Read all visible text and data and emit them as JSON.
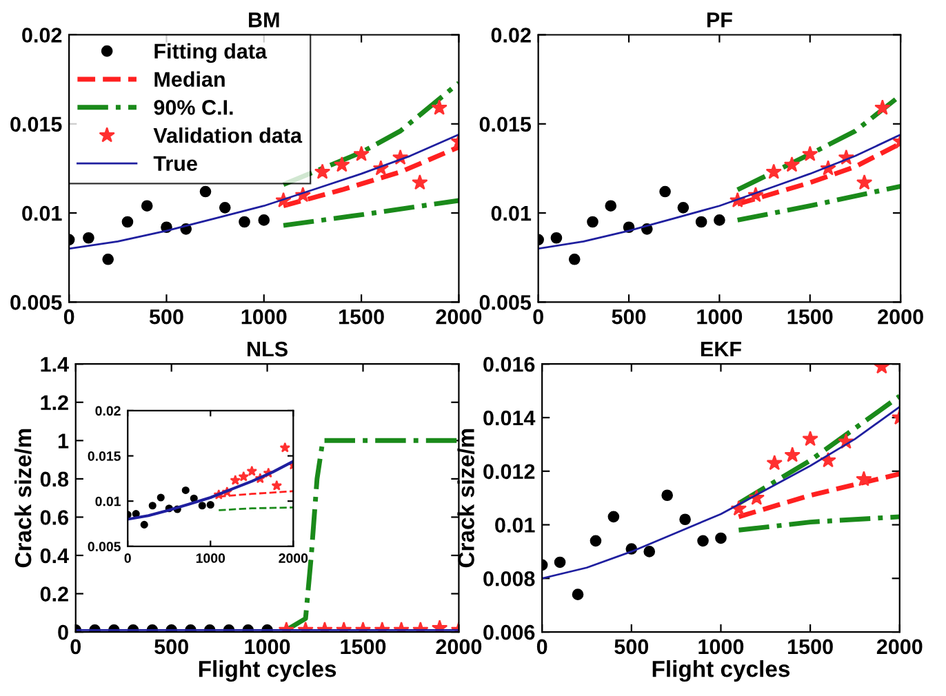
{
  "chart_data": [
    {
      "type": "line",
      "title": "BM",
      "xlim": [
        0,
        2000
      ],
      "xticks": [
        0,
        500,
        1000,
        1500,
        2000
      ],
      "ylim": [
        0.005,
        0.02
      ],
      "yticks": [
        0.005,
        0.01,
        0.015,
        0.02
      ],
      "grid": false,
      "legend": "top left",
      "series": [
        {
          "name": "Fitting data",
          "type": "scatter",
          "marker": "circle",
          "color": "#000000",
          "x": [
            0,
            100,
            200,
            300,
            400,
            500,
            600,
            700,
            800,
            900,
            1000
          ],
          "values": [
            0.0085,
            0.0086,
            0.0074,
            0.0095,
            0.0104,
            0.0092,
            0.0091,
            0.0112,
            0.0103,
            0.0095,
            0.0096
          ]
        },
        {
          "name": "Median",
          "type": "line",
          "line_style": "dashed",
          "color": "#ff2020",
          "x": [
            1100,
            1400,
            1700,
            2000
          ],
          "values": [
            0.0104,
            0.0113,
            0.0123,
            0.0137
          ]
        },
        {
          "name": "90% C.I.",
          "type": "line",
          "line_style": "dashdot",
          "color": "#1a8a1a",
          "x": [
            1100,
            1300,
            1500,
            1700,
            2000
          ],
          "values": [
            0.0116,
            0.0125,
            0.0134,
            0.0146,
            0.0173
          ]
        },
        {
          "type": "line",
          "line_style": "dashdot",
          "color": "#1a8a1a",
          "x": [
            1100,
            1500,
            2000
          ],
          "values": [
            0.0093,
            0.0099,
            0.0107
          ]
        },
        {
          "name": "Validation data",
          "type": "scatter",
          "marker": "star",
          "color": "#ff3030",
          "x": [
            1100,
            1200,
            1300,
            1400,
            1500,
            1600,
            1700,
            1800,
            1900,
            2000
          ],
          "values": [
            0.0107,
            0.011,
            0.0123,
            0.0127,
            0.0133,
            0.0125,
            0.0131,
            0.0117,
            0.0159,
            0.014
          ]
        },
        {
          "name": "True",
          "type": "line",
          "line_style": "solid",
          "color": "#1f1f9f",
          "x": [
            0,
            250,
            500,
            750,
            1000,
            1250,
            1500,
            1750,
            2000
          ],
          "values": [
            0.008,
            0.0084,
            0.009,
            0.0097,
            0.0104,
            0.0113,
            0.0122,
            0.0132,
            0.0144
          ]
        }
      ]
    },
    {
      "type": "line",
      "title": "PF",
      "xlim": [
        0,
        2000
      ],
      "xticks": [
        0,
        500,
        1000,
        1500,
        2000
      ],
      "ylim": [
        0.005,
        0.02
      ],
      "yticks": [
        0.005,
        0.01,
        0.015,
        0.02
      ],
      "grid": false,
      "series": [
        {
          "type": "scatter",
          "marker": "circle",
          "color": "#000000",
          "x": [
            0,
            100,
            200,
            300,
            400,
            500,
            600,
            700,
            800,
            900,
            1000
          ],
          "values": [
            0.0085,
            0.0086,
            0.0074,
            0.0095,
            0.0104,
            0.0092,
            0.0091,
            0.0112,
            0.0103,
            0.0095,
            0.0096
          ]
        },
        {
          "type": "line",
          "line_style": "dashed",
          "color": "#ff2020",
          "x": [
            1100,
            1500,
            1750,
            2000
          ],
          "values": [
            0.0105,
            0.0117,
            0.0126,
            0.0139
          ]
        },
        {
          "type": "line",
          "line_style": "dashdot",
          "color": "#1a8a1a",
          "x": [
            1100,
            1300,
            1500,
            1750,
            2000
          ],
          "values": [
            0.0113,
            0.0123,
            0.0133,
            0.0146,
            0.0166
          ]
        },
        {
          "type": "line",
          "line_style": "dashdot",
          "color": "#1a8a1a",
          "x": [
            1100,
            1500,
            2000
          ],
          "values": [
            0.0096,
            0.0104,
            0.0115
          ]
        },
        {
          "type": "scatter",
          "marker": "star",
          "color": "#ff3030",
          "x": [
            1100,
            1200,
            1300,
            1400,
            1500,
            1600,
            1700,
            1800,
            1900,
            2000
          ],
          "values": [
            0.0107,
            0.011,
            0.0123,
            0.0127,
            0.0133,
            0.0125,
            0.0131,
            0.0117,
            0.0159,
            0.014
          ]
        },
        {
          "type": "line",
          "line_style": "solid",
          "color": "#1f1f9f",
          "x": [
            0,
            250,
            500,
            750,
            1000,
            1250,
            1500,
            1750,
            2000
          ],
          "values": [
            0.008,
            0.0084,
            0.009,
            0.0097,
            0.0104,
            0.0113,
            0.0122,
            0.0132,
            0.0144
          ]
        }
      ]
    },
    {
      "type": "line",
      "title": "NLS",
      "xlabel": "Flight cycles",
      "ylabel": "Crack size/m",
      "xlim": [
        0,
        2000
      ],
      "xticks": [
        0,
        500,
        1000,
        1500,
        2000
      ],
      "ylim": [
        0,
        1.4
      ],
      "yticks": [
        0,
        0.2,
        0.4,
        0.6,
        0.8,
        1,
        1.2,
        1.4
      ],
      "grid": false,
      "series": [
        {
          "type": "scatter",
          "marker": "circle",
          "color": "#000000",
          "x": [
            0,
            100,
            200,
            300,
            400,
            500,
            600,
            700,
            800,
            900,
            1000
          ],
          "values": [
            0.01,
            0.01,
            0.01,
            0.01,
            0.01,
            0.01,
            0.01,
            0.01,
            0.01,
            0.01,
            0.01
          ]
        },
        {
          "line_style": "dashdot",
          "color": "#1a8a1a",
          "x": [
            1100,
            1200,
            1230,
            1260,
            1290,
            2000
          ],
          "values": [
            0.01,
            0.07,
            0.4,
            0.8,
            1.0,
            1.0
          ]
        },
        {
          "type": "scatter",
          "marker": "star",
          "color": "#ff3030",
          "x": [
            1100,
            1200,
            1300,
            1400,
            1500,
            1600,
            1700,
            1800,
            1900,
            2000
          ],
          "values": [
            0.01,
            0.01,
            0.01,
            0.01,
            0.01,
            0.01,
            0.01,
            0.01,
            0.02,
            0.01
          ]
        },
        {
          "line_style": "solid",
          "color": "#1f1f9f",
          "x": [
            0,
            2000
          ],
          "values": [
            0.01,
            0.01
          ]
        }
      ]
    },
    {
      "type": "line",
      "xlim": [
        0,
        2000
      ],
      "xticks": [
        0,
        1000,
        2000
      ],
      "ylim": [
        0.005,
        0.02
      ],
      "yticks": [
        0.005,
        0.01,
        0.015,
        0.02
      ],
      "grid": false,
      "series": [
        {
          "type": "scatter",
          "marker": "circle",
          "color": "#000000",
          "x": [
            0,
            100,
            200,
            300,
            400,
            500,
            600,
            700,
            800,
            900,
            1000
          ],
          "values": [
            0.0085,
            0.0086,
            0.0074,
            0.0095,
            0.0104,
            0.0092,
            0.0091,
            0.0112,
            0.0103,
            0.0095,
            0.0096
          ]
        },
        {
          "type": "line",
          "line_style": "dashed",
          "color": "#ff2020",
          "x": [
            1100,
            1500,
            2000
          ],
          "values": [
            0.0105,
            0.0108,
            0.0111
          ]
        },
        {
          "type": "line",
          "line_style": "dashed",
          "color": "#1a8a1a",
          "x": [
            1100,
            1500,
            2000
          ],
          "values": [
            0.009,
            0.0092,
            0.0093
          ]
        },
        {
          "type": "scatter",
          "marker": "star",
          "color": "#ff3030",
          "x": [
            1100,
            1200,
            1300,
            1400,
            1500,
            1600,
            1700,
            1800,
            1900,
            2000
          ],
          "values": [
            0.0107,
            0.011,
            0.0123,
            0.0127,
            0.0133,
            0.0125,
            0.0131,
            0.0117,
            0.0159,
            0.014
          ]
        },
        {
          "type": "line",
          "line_style": "solid",
          "color": "#1f1f9f",
          "x": [
            0,
            250,
            500,
            750,
            1000,
            1250,
            1500,
            1750,
            2000
          ],
          "values": [
            0.008,
            0.0084,
            0.009,
            0.0097,
            0.0104,
            0.0113,
            0.0122,
            0.0132,
            0.0144
          ]
        }
      ]
    },
    {
      "type": "line",
      "title": "EKF",
      "xlabel": "Flight cycles",
      "ylabel": "Crack size/m",
      "xlim": [
        0,
        2000
      ],
      "xticks": [
        0,
        500,
        1000,
        1500,
        2000
      ],
      "ylim": [
        0.006,
        0.016
      ],
      "yticks": [
        0.006,
        0.008,
        0.01,
        0.012,
        0.014,
        0.016
      ],
      "grid": false,
      "series": [
        {
          "type": "scatter",
          "marker": "circle",
          "color": "#000000",
          "x": [
            0,
            100,
            200,
            300,
            400,
            500,
            600,
            700,
            800,
            900,
            1000
          ],
          "values": [
            0.0085,
            0.0086,
            0.0074,
            0.0094,
            0.0103,
            0.0091,
            0.009,
            0.0111,
            0.0102,
            0.0094,
            0.0095
          ]
        },
        {
          "type": "line",
          "line_style": "dashed",
          "color": "#ff2020",
          "x": [
            1100,
            1500,
            2000
          ],
          "values": [
            0.0103,
            0.0111,
            0.0119
          ]
        },
        {
          "type": "line",
          "line_style": "dashdot",
          "color": "#1a8a1a",
          "x": [
            1100,
            1500,
            2000
          ],
          "values": [
            0.0108,
            0.0124,
            0.0148
          ]
        },
        {
          "type": "line",
          "line_style": "dashdot",
          "color": "#1a8a1a",
          "x": [
            1100,
            1500,
            2000
          ],
          "values": [
            0.0098,
            0.0101,
            0.0103
          ]
        },
        {
          "type": "scatter",
          "marker": "star",
          "color": "#ff3030",
          "x": [
            1100,
            1200,
            1300,
            1400,
            1500,
            1600,
            1700,
            1800,
            1900,
            2000
          ],
          "values": [
            0.0106,
            0.011,
            0.0123,
            0.0126,
            0.0132,
            0.0124,
            0.0131,
            0.0117,
            0.0159,
            0.014
          ]
        },
        {
          "type": "line",
          "line_style": "solid",
          "color": "#1f1f9f",
          "x": [
            0,
            250,
            500,
            750,
            1000,
            1250,
            1500,
            1750,
            2000
          ],
          "values": [
            0.008,
            0.0084,
            0.009,
            0.0097,
            0.0104,
            0.0113,
            0.0122,
            0.0132,
            0.0144
          ]
        }
      ]
    }
  ]
}
